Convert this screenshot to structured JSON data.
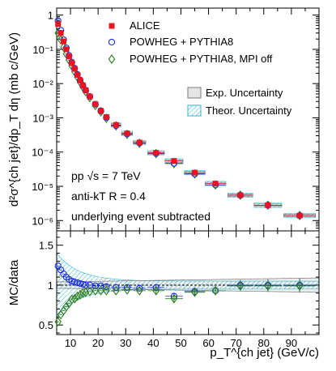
{
  "chart_data": [
    {
      "type": "scatter",
      "panel": "spectrum",
      "ylabel": "d²σ^{ch jet}/dp_T dη (mb c/GeV)",
      "yscale": "log",
      "ylim": [
        5e-07,
        1.6
      ],
      "xlim": [
        5,
        100
      ],
      "ytick_labels": [
        "10⁻⁶",
        "10⁻⁵",
        "10⁻⁴",
        "10⁻³",
        "10⁻²",
        "10⁻¹",
        "1"
      ],
      "legend_position": "top-right",
      "series": [
        {
          "name": "ALICE",
          "marker": "red-square",
          "color": "#e8141e",
          "points": [
            {
              "x": 5.5,
              "y": 0.55
            },
            {
              "x": 6.5,
              "y": 0.3
            },
            {
              "x": 7.5,
              "y": 0.17
            },
            {
              "x": 8.5,
              "y": 0.1
            },
            {
              "x": 9.5,
              "y": 0.062
            },
            {
              "x": 10.5,
              "y": 0.04
            },
            {
              "x": 11.5,
              "y": 0.027
            },
            {
              "x": 12.5,
              "y": 0.018
            },
            {
              "x": 13.5,
              "y": 0.0125
            },
            {
              "x": 14.5,
              "y": 0.0088
            },
            {
              "x": 15.5,
              "y": 0.0064
            },
            {
              "x": 17,
              "y": 0.0042
            },
            {
              "x": 19,
              "y": 0.0025
            },
            {
              "x": 21,
              "y": 0.0016
            },
            {
              "x": 23,
              "y": 0.00105
            },
            {
              "x": 26.5,
              "y": 0.00062
            },
            {
              "x": 30.5,
              "y": 0.00035
            },
            {
              "x": 35,
              "y": 0.00019
            },
            {
              "x": 41,
              "y": 9.5e-05
            },
            {
              "x": 47.5,
              "y": 5.5e-05
            },
            {
              "x": 55,
              "y": 2.5e-05
            },
            {
              "x": 62.5,
              "y": 1.2e-05
            },
            {
              "x": 71.5,
              "y": 5.5e-06
            },
            {
              "x": 81.5,
              "y": 2.8e-06
            },
            {
              "x": 93,
              "y": 1.4e-06
            }
          ]
        },
        {
          "name": "POWHEG + PYTHIA8",
          "marker": "open-circle",
          "color": "#1a2ee6",
          "points": [
            {
              "x": 5.5,
              "y": 0.68
            },
            {
              "x": 6.5,
              "y": 0.36
            },
            {
              "x": 7.5,
              "y": 0.19
            },
            {
              "x": 8.5,
              "y": 0.11
            },
            {
              "x": 9.5,
              "y": 0.066
            },
            {
              "x": 10.5,
              "y": 0.042
            },
            {
              "x": 11.5,
              "y": 0.028
            },
            {
              "x": 12.5,
              "y": 0.0185
            },
            {
              "x": 13.5,
              "y": 0.0127
            },
            {
              "x": 14.5,
              "y": 0.0089
            },
            {
              "x": 15.5,
              "y": 0.0064
            },
            {
              "x": 17,
              "y": 0.0042
            },
            {
              "x": 19,
              "y": 0.0025
            },
            {
              "x": 21,
              "y": 0.0016
            },
            {
              "x": 23,
              "y": 0.00103
            },
            {
              "x": 26.5,
              "y": 0.0006
            },
            {
              "x": 30.5,
              "y": 0.00034
            },
            {
              "x": 35,
              "y": 0.000185
            },
            {
              "x": 41,
              "y": 9.2e-05
            },
            {
              "x": 47.5,
              "y": 4.7e-05
            },
            {
              "x": 55,
              "y": 2.3e-05
            },
            {
              "x": 62.5,
              "y": 1.1e-05
            },
            {
              "x": 71.5,
              "y": 5.5e-06
            },
            {
              "x": 81.5,
              "y": 2.8e-06
            },
            {
              "x": 93,
              "y": 1.4e-06
            }
          ]
        },
        {
          "name": "POWHEG + PYTHIA8, MPI off",
          "marker": "open-diamond",
          "color": "#2e7d1e",
          "points": [
            {
              "x": 5.5,
              "y": 0.3
            },
            {
              "x": 6.5,
              "y": 0.19
            },
            {
              "x": 7.5,
              "y": 0.115
            },
            {
              "x": 8.5,
              "y": 0.073
            },
            {
              "x": 9.5,
              "y": 0.048
            },
            {
              "x": 10.5,
              "y": 0.033
            },
            {
              "x": 11.5,
              "y": 0.0225
            },
            {
              "x": 12.5,
              "y": 0.0155
            },
            {
              "x": 13.5,
              "y": 0.011
            },
            {
              "x": 14.5,
              "y": 0.0079
            },
            {
              "x": 15.5,
              "y": 0.0058
            },
            {
              "x": 17,
              "y": 0.0039
            },
            {
              "x": 19,
              "y": 0.0023
            },
            {
              "x": 21,
              "y": 0.0015
            },
            {
              "x": 23,
              "y": 0.00097
            },
            {
              "x": 26.5,
              "y": 0.00058
            },
            {
              "x": 30.5,
              "y": 0.00033
            },
            {
              "x": 35,
              "y": 0.00018
            },
            {
              "x": 41,
              "y": 9e-05
            },
            {
              "x": 47.5,
              "y": 4.6e-05
            },
            {
              "x": 55,
              "y": 2.3e-05
            },
            {
              "x": 62.5,
              "y": 1.1e-05
            },
            {
              "x": 71.5,
              "y": 5.5e-06
            },
            {
              "x": 81.5,
              "y": 2.8e-06
            },
            {
              "x": 93,
              "y": 1.4e-06
            }
          ]
        }
      ],
      "uncertainty_legend": [
        "Exp. Uncertainty",
        "Theor. Uncertainty"
      ],
      "annotations": [
        "pp   √s = 7 TeV",
        "anti-kT  R = 0.4",
        "underlying event subtracted"
      ]
    },
    {
      "type": "scatter",
      "panel": "ratio",
      "ylabel": "MC/data",
      "xlabel": "p_T^{ch jet} (GeV/c)",
      "ylim": [
        0.38,
        1.68
      ],
      "xlim": [
        5,
        100
      ],
      "reference_line": 1.0,
      "ytick_labels": [
        "0.5",
        "1",
        "1.5"
      ],
      "xtick_labels": [
        "10",
        "20",
        "30",
        "40",
        "50",
        "60",
        "70",
        "80",
        "90"
      ],
      "series": [
        {
          "name": "POWHEG + PYTHIA8",
          "points": [
            {
              "x": 5.5,
              "y": 1.24
            },
            {
              "x": 6.5,
              "y": 1.19
            },
            {
              "x": 7.5,
              "y": 1.14
            },
            {
              "x": 8.5,
              "y": 1.1
            },
            {
              "x": 9.5,
              "y": 1.07
            },
            {
              "x": 10.5,
              "y": 1.05
            },
            {
              "x": 11.5,
              "y": 1.04
            },
            {
              "x": 12.5,
              "y": 1.03
            },
            {
              "x": 13.5,
              "y": 1.02
            },
            {
              "x": 14.5,
              "y": 1.01
            },
            {
              "x": 15.5,
              "y": 1.0
            },
            {
              "x": 17,
              "y": 1.0
            },
            {
              "x": 19,
              "y": 0.99
            },
            {
              "x": 21,
              "y": 0.99
            },
            {
              "x": 23,
              "y": 0.98
            },
            {
              "x": 26.5,
              "y": 0.97
            },
            {
              "x": 30.5,
              "y": 0.97
            },
            {
              "x": 35,
              "y": 0.96
            },
            {
              "x": 41,
              "y": 0.97
            },
            {
              "x": 47.5,
              "y": 0.86
            },
            {
              "x": 55,
              "y": 0.92
            },
            {
              "x": 62.5,
              "y": 0.93
            },
            {
              "x": 71.5,
              "y": 1.0
            },
            {
              "x": 81.5,
              "y": 1.0
            },
            {
              "x": 93,
              "y": 1.0
            }
          ]
        },
        {
          "name": "POWHEG + PYTHIA8, MPI off",
          "points": [
            {
              "x": 5.5,
              "y": 0.54
            },
            {
              "x": 6.5,
              "y": 0.63
            },
            {
              "x": 7.5,
              "y": 0.68
            },
            {
              "x": 8.5,
              "y": 0.73
            },
            {
              "x": 9.5,
              "y": 0.77
            },
            {
              "x": 10.5,
              "y": 0.82
            },
            {
              "x": 11.5,
              "y": 0.83
            },
            {
              "x": 12.5,
              "y": 0.86
            },
            {
              "x": 13.5,
              "y": 0.88
            },
            {
              "x": 14.5,
              "y": 0.9
            },
            {
              "x": 15.5,
              "y": 0.91
            },
            {
              "x": 17,
              "y": 0.92
            },
            {
              "x": 19,
              "y": 0.93
            },
            {
              "x": 21,
              "y": 0.93
            },
            {
              "x": 23,
              "y": 0.93
            },
            {
              "x": 26.5,
              "y": 0.93
            },
            {
              "x": 30.5,
              "y": 0.94
            },
            {
              "x": 35,
              "y": 0.93
            },
            {
              "x": 41,
              "y": 0.93
            },
            {
              "x": 47.5,
              "y": 0.83
            },
            {
              "x": 55,
              "y": 0.91
            },
            {
              "x": 62.5,
              "y": 0.93
            },
            {
              "x": 71.5,
              "y": 0.99
            },
            {
              "x": 81.5,
              "y": 0.99
            },
            {
              "x": 93,
              "y": 0.99
            }
          ]
        }
      ]
    }
  ],
  "colors": {
    "alice": "#e8141e",
    "powheg": "#1a2ee6",
    "mpi_off": "#2e7d1e",
    "theory_band": "#29b6d6",
    "exp_box": "#7a7a7a"
  }
}
